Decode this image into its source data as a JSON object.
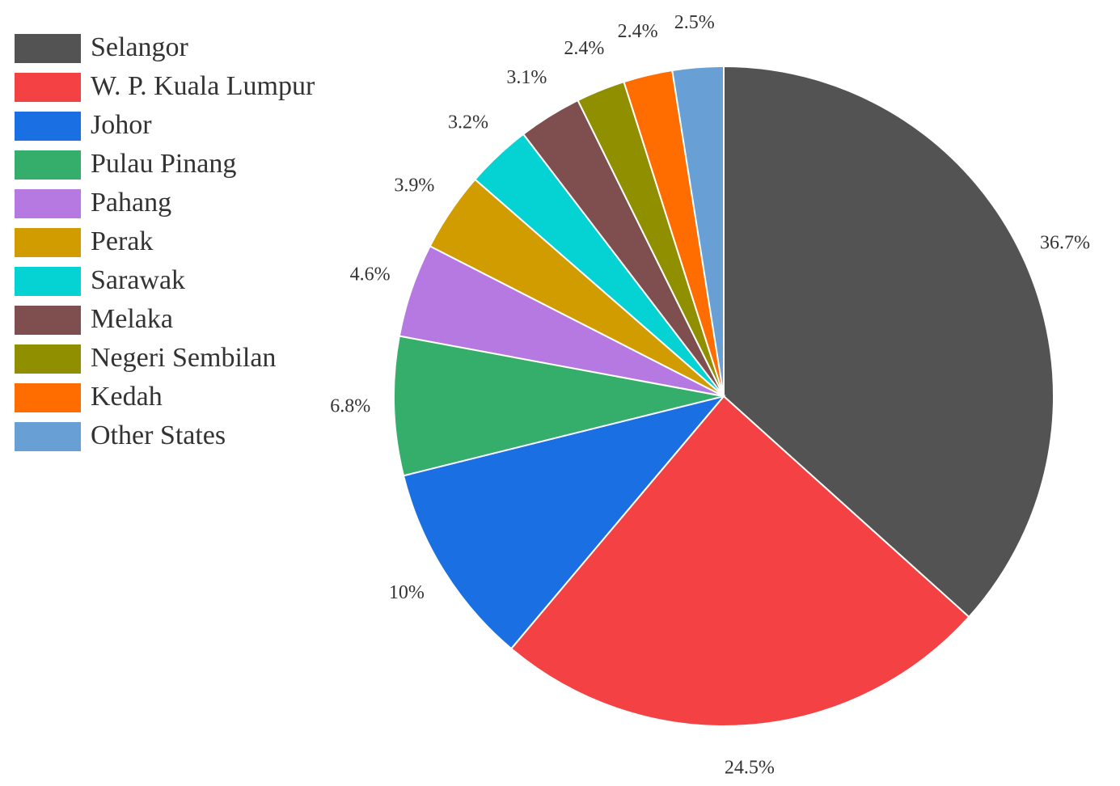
{
  "chart_data": {
    "type": "pie",
    "legend_position": "top-left",
    "slices": [
      {
        "label": "Selangor",
        "value": 36.7,
        "display": "36.7%",
        "color": "#535353"
      },
      {
        "label": "W. P. Kuala Lumpur",
        "value": 24.5,
        "display": "24.5%",
        "color": "#f44244"
      },
      {
        "label": "Johor",
        "value": 10,
        "display": "10%",
        "color": "#1a6fe3"
      },
      {
        "label": "Pulau Pinang",
        "value": 6.8,
        "display": "6.8%",
        "color": "#35ae6b"
      },
      {
        "label": "Pahang",
        "value": 4.6,
        "display": "4.6%",
        "color": "#b579e1"
      },
      {
        "label": "Perak",
        "value": 3.9,
        "display": "3.9%",
        "color": "#d19c00"
      },
      {
        "label": "Sarawak",
        "value": 3.2,
        "display": "3.2%",
        "color": "#05d2d3"
      },
      {
        "label": "Melaka",
        "value": 3.1,
        "display": "3.1%",
        "color": "#7f4f4f"
      },
      {
        "label": "Negeri Sembilan",
        "value": 2.4,
        "display": "2.4%",
        "color": "#8f8f00"
      },
      {
        "label": "Kedah",
        "value": 2.4,
        "display": "2.4%",
        "color": "#ff6d00"
      },
      {
        "label": "Other States",
        "value": 2.5,
        "display": "2.5%",
        "color": "#689fd5"
      }
    ]
  }
}
